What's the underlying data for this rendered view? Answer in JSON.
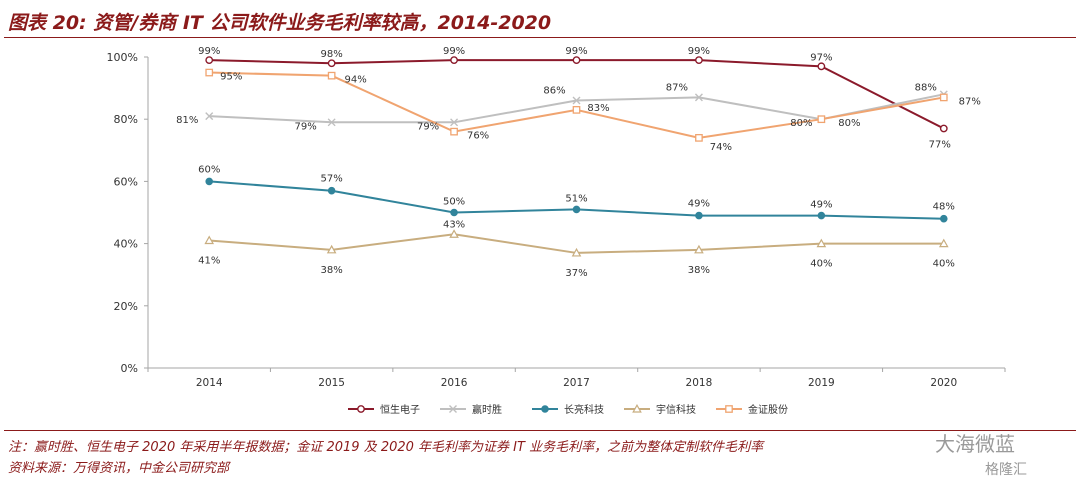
{
  "header": {
    "title": "图表 20: 资管/券商 IT 公司软件业务毛利率较高，2014-2020"
  },
  "notes": {
    "note1": "注：赢时胜、恒生电子 2020 年采用半年报数据；金证 2019 及 2020 年毛利率为证券 IT 业务毛利率，之前为整体定制软件毛利率",
    "source": "资料来源：万得资讯，中金公司研究部"
  },
  "watermark": {
    "account": "大海微蓝",
    "brand": "格隆汇"
  },
  "chart_data": {
    "type": "line",
    "x": [
      "2014",
      "2015",
      "2016",
      "2017",
      "2018",
      "2019",
      "2020"
    ],
    "ylim": [
      0,
      100
    ],
    "yticks": [
      "0%",
      "20%",
      "40%",
      "60%",
      "80%",
      "100%"
    ],
    "grid": false,
    "legend_position": "bottom",
    "series": [
      {
        "name": "恒生电子",
        "color": "#8b1a2b",
        "marker": "circle",
        "values": [
          99,
          98,
          99,
          99,
          99,
          97,
          77
        ],
        "labels": [
          "99%",
          "98%",
          "99%",
          "99%",
          "99%",
          "97%",
          "77%"
        ]
      },
      {
        "name": "赢时胜",
        "color": "#bfbfbf",
        "marker": "x",
        "values": [
          81,
          79,
          79,
          86,
          87,
          80,
          88
        ],
        "labels": [
          "81%",
          "79%",
          "79%",
          "86%",
          "87%",
          "80%",
          "88%"
        ]
      },
      {
        "name": "长亮科技",
        "color": "#31849b",
        "marker": "dot",
        "values": [
          60,
          57,
          50,
          51,
          49,
          49,
          48
        ],
        "labels": [
          "60%",
          "57%",
          "50%",
          "51%",
          "49%",
          "49%",
          "48%"
        ]
      },
      {
        "name": "宇信科技",
        "color": "#c8ad7f",
        "marker": "triangle",
        "values": [
          41,
          38,
          43,
          37,
          38,
          40,
          40
        ],
        "labels": [
          "41%",
          "38%",
          "43%",
          "37%",
          "38%",
          "40%",
          "40%"
        ]
      },
      {
        "name": "金证股份",
        "color": "#f0a470",
        "marker": "square",
        "values": [
          95,
          94,
          76,
          83,
          74,
          80,
          87
        ],
        "labels": [
          "95%",
          "94%",
          "76%",
          "83%",
          "74%",
          "80%",
          "87%"
        ]
      }
    ]
  }
}
